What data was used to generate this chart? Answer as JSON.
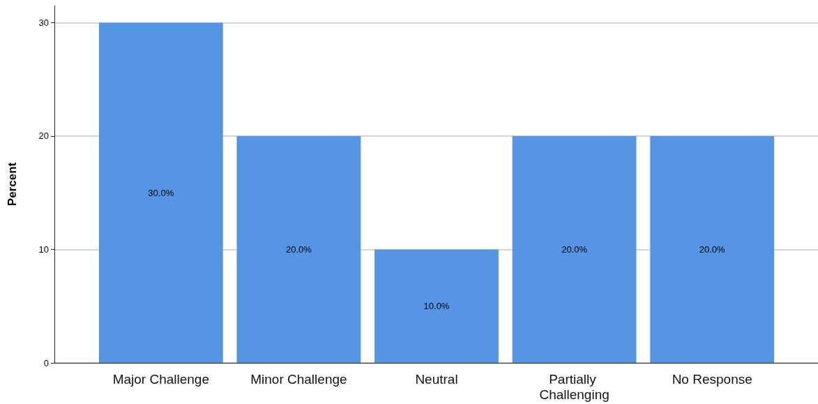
{
  "chart_data": {
    "type": "bar",
    "ylabel": "Percent",
    "categories": [
      "Major Challenge",
      "Minor Challenge",
      "Neutral",
      "Partially Challenging",
      "No Response"
    ],
    "values": [
      30,
      20,
      10,
      20,
      20
    ],
    "value_labels": [
      "30.0%",
      "20.0%",
      "10.0%",
      "20.0%",
      "20.0%"
    ],
    "color": "#5595e3",
    "ylim": [
      0,
      31.5
    ],
    "yticks": [
      0,
      10,
      20,
      30
    ],
    "grid": "y"
  }
}
